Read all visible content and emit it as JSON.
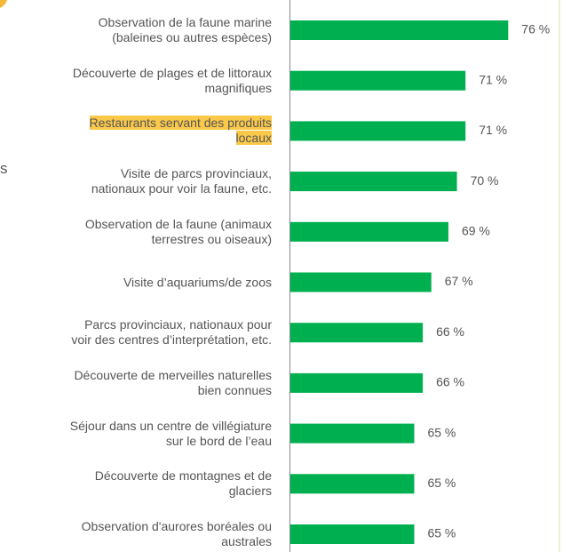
{
  "chart_data": {
    "type": "barh",
    "categories": [
      "Observation de la faune marine\n(baleines ou autres espèces)",
      "Découverte de plages et de littoraux\nmagnifiques",
      "Restaurants servant des produits\nlocaux",
      "Visite de parcs provinciaux,\nnationaux pour voir la faune, etc.",
      "Observation de la faune (animaux\nterrestres ou oiseaux)",
      "Visite d’aquariums/de zoos",
      "Parcs provinciaux, nationaux pour\nvoir des centres d’interprétation, etc.",
      "Découverte de merveilles naturelles\nbien connues",
      "Séjour dans un centre de villégiature\nsur le bord de l’eau",
      "Découverte de montagnes et de\nglaciers",
      "Observation d'aurores boréales ou\naustrales"
    ],
    "values": [
      76,
      71,
      71,
      70,
      69,
      67,
      66,
      66,
      65,
      65,
      65
    ],
    "value_labels": [
      "76 %",
      "71 %",
      "71 %",
      "70 %",
      "69 %",
      "67 %",
      "66 %",
      "66 %",
      "65 %",
      "65 %",
      "65 %"
    ],
    "color": "#00b050",
    "xlim": [
      50.5,
      82
    ],
    "highlight": 2,
    "highlight_color": "#fbc94a",
    "annotation": "s"
  }
}
